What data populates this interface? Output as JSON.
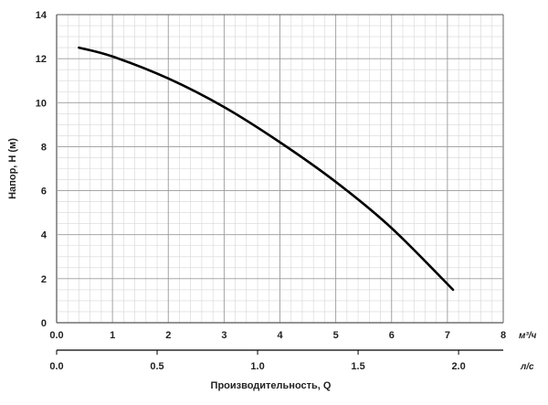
{
  "chart_data": {
    "type": "line",
    "title": "",
    "xlabel": "Производительность, Q",
    "ylabel": "Напор, H (м)",
    "x_unit_primary": "м³/ч",
    "x_unit_secondary": "л/с",
    "xlim": [
      0,
      8
    ],
    "ylim": [
      0,
      14
    ],
    "grid": true,
    "x_ticks": [
      "0.0",
      "1",
      "2",
      "3",
      "4",
      "5",
      "6",
      "7",
      "8"
    ],
    "x_ticks_secondary": [
      "0.0",
      "0.5",
      "1.0",
      "1.5",
      "2.0"
    ],
    "x_ticks_secondary_values": [
      0,
      0.5,
      1.0,
      1.5,
      2.0
    ],
    "y_ticks": [
      "0",
      "2",
      "4",
      "6",
      "8",
      "10",
      "12",
      "14"
    ],
    "series": [
      {
        "x": [
          0.4,
          1,
          2,
          3,
          4,
          5,
          6,
          7.1
        ],
        "y": [
          12.5,
          12.1,
          11.1,
          9.8,
          8.2,
          6.4,
          4.3,
          1.5
        ],
        "color": "#000000"
      }
    ]
  }
}
